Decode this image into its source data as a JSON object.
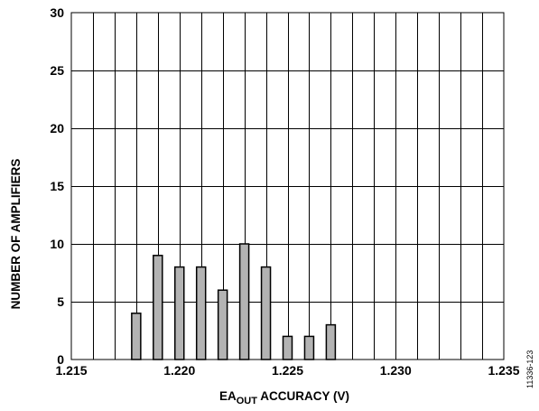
{
  "chart_data": {
    "type": "bar",
    "x": [
      1.218,
      1.219,
      1.22,
      1.221,
      1.222,
      1.223,
      1.224,
      1.225,
      1.226,
      1.227
    ],
    "values": [
      4,
      9,
      8,
      8,
      6,
      10,
      8,
      2,
      2,
      3
    ],
    "xlabel": {
      "main": "EA",
      "sub": "OUT",
      "rest": " ACCURACY (V)"
    },
    "ylabel": "NUMBER OF AMPLIFIERS",
    "xlim": [
      1.215,
      1.235
    ],
    "ylim": [
      0,
      30
    ],
    "x_ticks": [
      "1.215",
      "1.220",
      "1.225",
      "1.230",
      "1.235"
    ],
    "y_ticks": [
      "0",
      "5",
      "10",
      "15",
      "20",
      "25",
      "30"
    ],
    "x_grid_step": 0.001,
    "y_grid_step": 5,
    "grid": true,
    "bar_color": "#b3b3b3"
  },
  "figure_id": "11336-123"
}
